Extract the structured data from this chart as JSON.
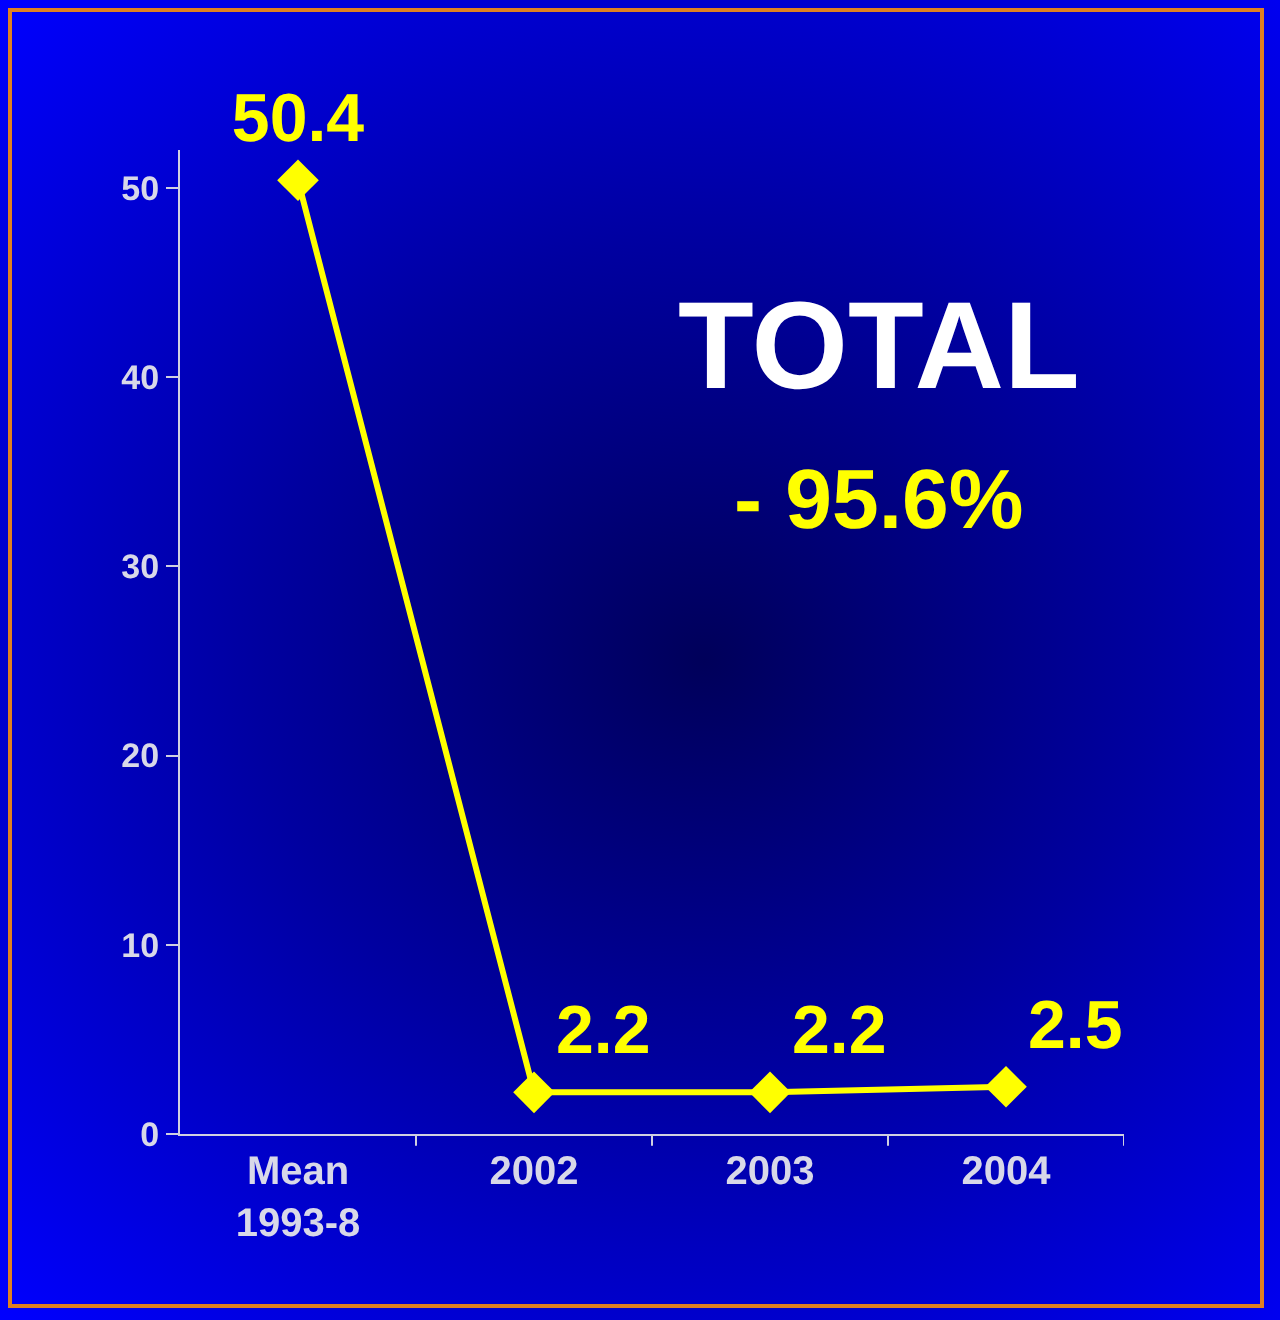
{
  "chart_data": {
    "type": "line",
    "categories": [
      "Mean\n1993-8",
      "2002",
      "2003",
      "2004"
    ],
    "values": [
      50.4,
      2.2,
      2.2,
      2.5
    ],
    "color": "#ffff00",
    "marker": "diamond",
    "line_style": "solid",
    "data_labels": true,
    "grid": false,
    "ylim": [
      0,
      52
    ],
    "yticks": [
      0,
      10,
      20,
      30,
      40,
      50
    ],
    "annotations": [
      "TOTAL",
      "- 95.6%"
    ]
  }
}
